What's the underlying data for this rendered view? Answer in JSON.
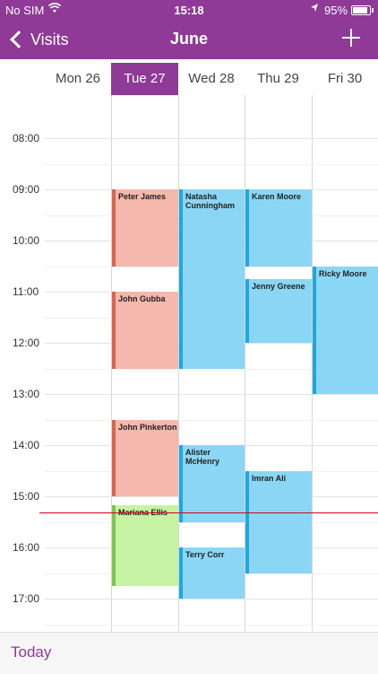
{
  "status_bar": {
    "carrier": "No SIM",
    "wifi_icon": "wifi-icon",
    "time": "15:18",
    "location_icon": "location-arrow-icon",
    "battery": "95%",
    "battery_icon": "battery-icon"
  },
  "nav": {
    "back_label": "Visits",
    "title": "June",
    "add_icon": "plus-icon"
  },
  "days": [
    {
      "label": "Mon 26",
      "selected": false
    },
    {
      "label": "Tue 27",
      "selected": true
    },
    {
      "label": "Wed 28",
      "selected": false
    },
    {
      "label": "Thu 29",
      "selected": false
    },
    {
      "label": "Fri 30",
      "selected": false
    }
  ],
  "hours": [
    "08:00",
    "09:00",
    "10:00",
    "11:00",
    "12:00",
    "13:00",
    "14:00",
    "15:00",
    "16:00",
    "17:00"
  ],
  "current_time": "15:18",
  "events": [
    {
      "day": "Tue 27",
      "name": "Peter James",
      "start": "09:00",
      "end": "10:30",
      "color": "salmon"
    },
    {
      "day": "Tue 27",
      "name": "John Gubba",
      "start": "11:00",
      "end": "12:30",
      "color": "salmon"
    },
    {
      "day": "Tue 27",
      "name": "John Pinkerton",
      "start": "13:30",
      "end": "15:00",
      "color": "salmon"
    },
    {
      "day": "Tue 27",
      "name": "Mariana Ellis",
      "start": "15:10",
      "end": "16:45",
      "color": "green"
    },
    {
      "day": "Wed 28",
      "name": "Natasha Cunningham",
      "start": "09:00",
      "end": "12:30",
      "color": "blue"
    },
    {
      "day": "Wed 28",
      "name": "Alister McHenry",
      "start": "14:00",
      "end": "15:30",
      "color": "blue"
    },
    {
      "day": "Wed 28",
      "name": "Terry Corr",
      "start": "16:00",
      "end": "17:00",
      "color": "blue"
    },
    {
      "day": "Thu 29",
      "name": "Karen Moore",
      "start": "09:00",
      "end": "10:30",
      "color": "blue"
    },
    {
      "day": "Thu 29",
      "name": "Jenny Greene",
      "start": "10:45",
      "end": "12:00",
      "color": "blue"
    },
    {
      "day": "Thu 29",
      "name": "Imran Ali",
      "start": "14:30",
      "end": "16:30",
      "color": "blue"
    },
    {
      "day": "Fri 30",
      "name": "Ricky Moore",
      "start": "10:30",
      "end": "13:00",
      "color": "blue"
    }
  ],
  "toolbar": {
    "today_label": "Today"
  },
  "colors": {
    "accent": "#8E3A96",
    "now_line": "#D0021B",
    "salmon": "#F5B8AC",
    "blue": "#8CD6F5",
    "green": "#C5F2A3"
  }
}
